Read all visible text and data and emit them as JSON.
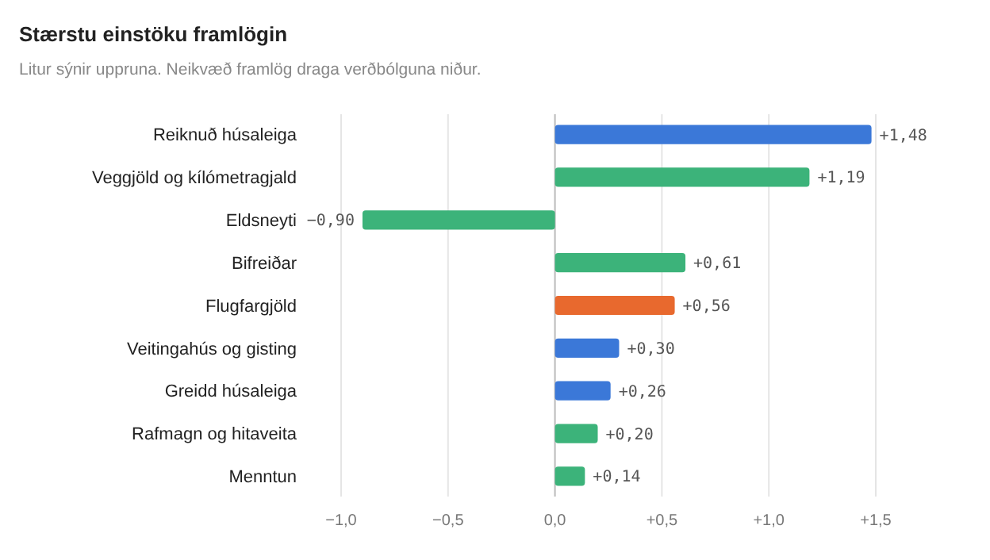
{
  "chart_data": {
    "type": "bar",
    "orientation": "horizontal",
    "title": "Stærstu einstöku framlögin",
    "subtitle": "Litur sýnir uppruna. Neikvæð framlög draga verðbólguna niður.",
    "categories": [
      "Reiknuð húsaleiga",
      "Veggjöld og kílómetragjald",
      "Eldsneyti",
      "Bifreiðar",
      "Flugfargjöld",
      "Veitingahús og gisting",
      "Greidd húsaleiga",
      "Rafmagn og hitaveita",
      "Menntun"
    ],
    "values": [
      1.48,
      1.19,
      -0.9,
      0.61,
      0.56,
      0.3,
      0.26,
      0.2,
      0.14
    ],
    "colors": [
      "#3b78d8",
      "#3cb37a",
      "#3cb37a",
      "#3cb37a",
      "#e8692e",
      "#3b78d8",
      "#3b78d8",
      "#3cb37a",
      "#3cb37a"
    ],
    "value_labels": [
      "+1,48",
      "+1,19",
      "−0,90",
      "+0,61",
      "+0,56",
      "+0,30",
      "+0,26",
      "+0,20",
      "+0,14"
    ],
    "xlim": [
      -1,
      1.5
    ],
    "xticks": [
      {
        "value": -1,
        "label": "−1,0"
      },
      {
        "value": -0.5,
        "label": "−0,5"
      },
      {
        "value": 0,
        "label": "0,0"
      },
      {
        "value": 0.5,
        "label": "+0,5"
      },
      {
        "value": 1,
        "label": "+1,0"
      },
      {
        "value": 1.5,
        "label": "+1,5"
      }
    ],
    "grid": "x"
  }
}
